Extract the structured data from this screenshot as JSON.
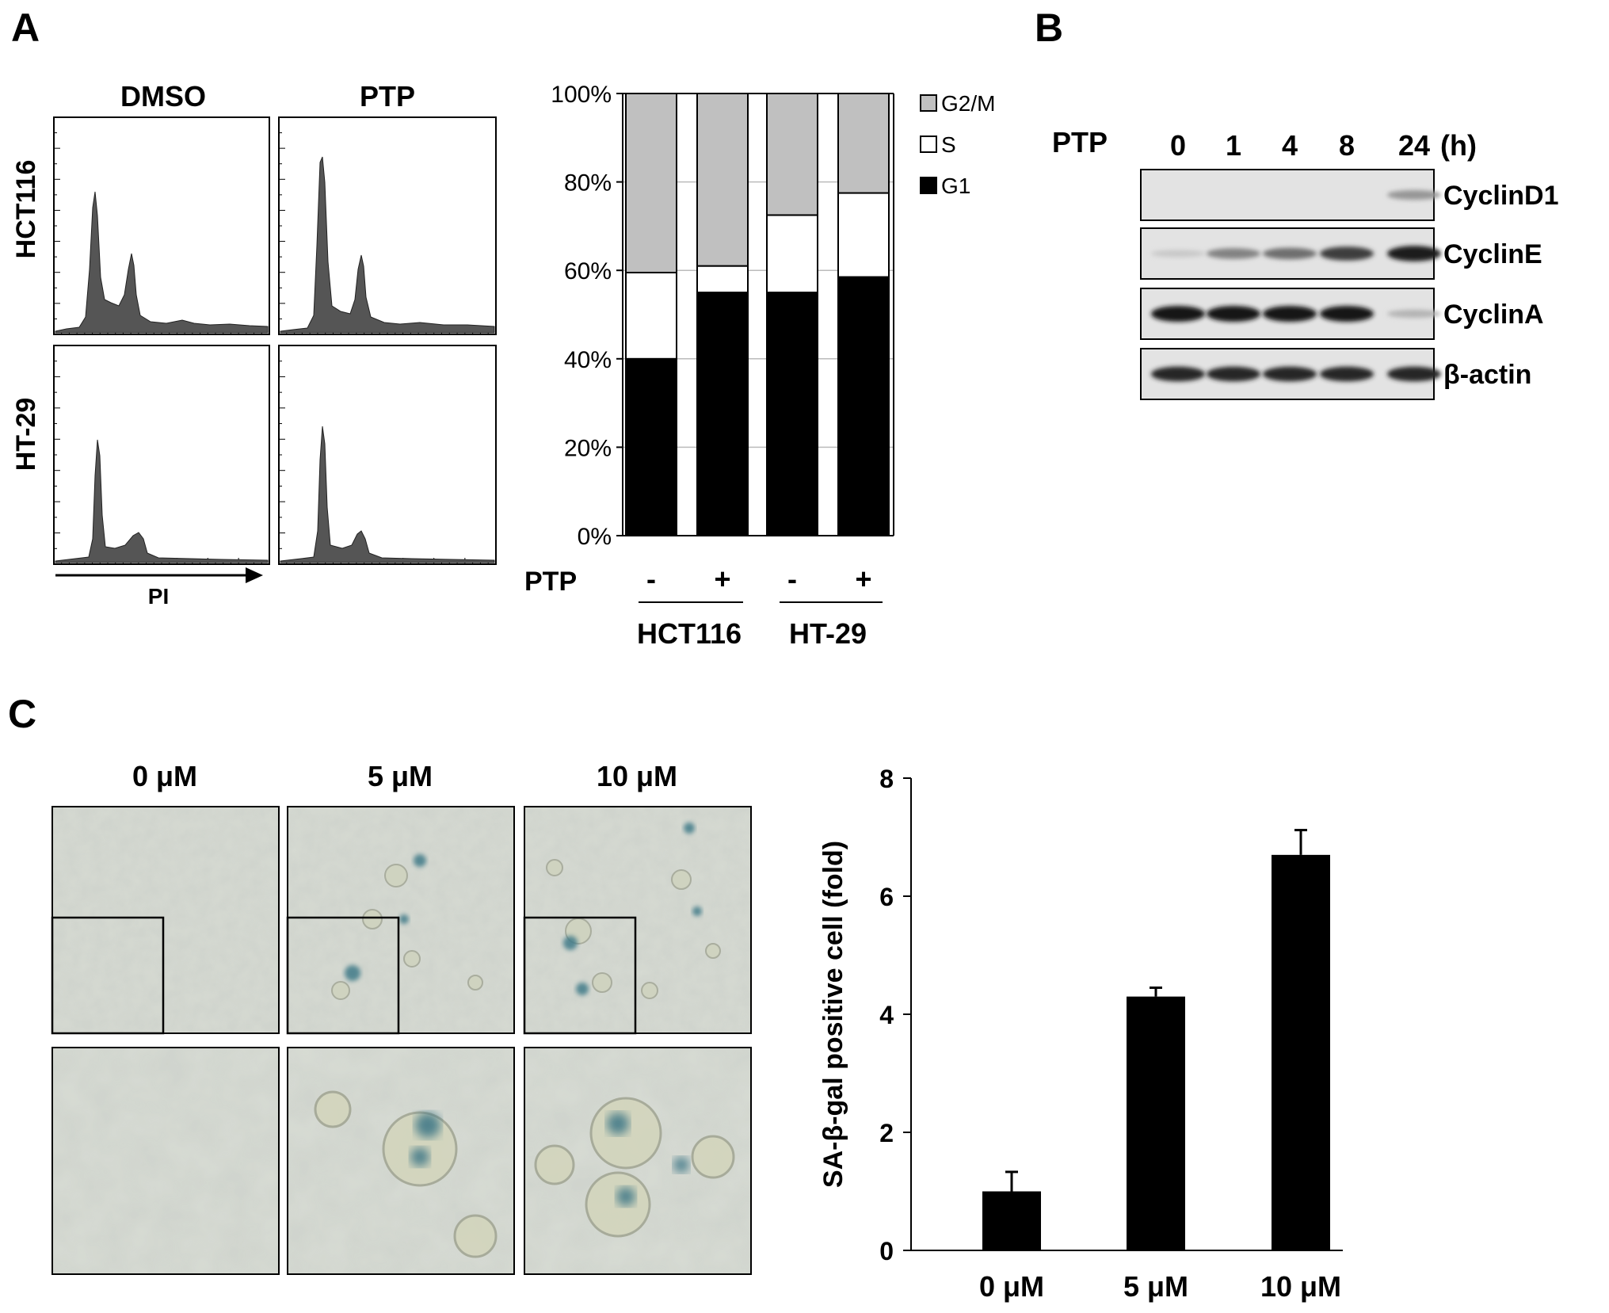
{
  "panels": {
    "a": {
      "letter": "A",
      "histograms": {
        "col_labels": [
          "DMSO",
          "PTP"
        ],
        "row_labels": [
          "HCT116",
          "HT-29"
        ],
        "x_label": "PI"
      },
      "treatment_label": "PTP",
      "bar_signs": [
        "-",
        "+",
        "-",
        "+"
      ],
      "group_labels": [
        "HCT116",
        "HT-29"
      ]
    },
    "b": {
      "letter": "B",
      "treatment_label": "PTP",
      "times": [
        "0",
        "1",
        "4",
        "8",
        "24"
      ],
      "time_unit": "(h)",
      "blots": [
        {
          "name": "CyclinD1",
          "intensity": [
            0,
            0,
            0,
            0,
            0.35
          ]
        },
        {
          "name": "CyclinE",
          "intensity": [
            0.1,
            0.45,
            0.55,
            0.8,
            0.95
          ]
        },
        {
          "name": "CyclinA",
          "intensity": [
            1,
            1,
            1,
            1,
            0.2
          ]
        },
        {
          "name": "β-actin",
          "intensity": [
            0.9,
            0.9,
            0.9,
            0.9,
            0.9
          ]
        }
      ]
    },
    "c": {
      "letter": "C",
      "image_labels": [
        "0 μM",
        "5 μM",
        "10 μM"
      ]
    }
  },
  "chart_data": [
    {
      "type": "bar",
      "stacked": true,
      "categories": [
        "-",
        "+",
        "-",
        "+"
      ],
      "groups": [
        "HCT116",
        "HT-29"
      ],
      "series": [
        {
          "name": "G1",
          "values": [
            40,
            55,
            55,
            58.5
          ],
          "color": "#000000"
        },
        {
          "name": "S",
          "values": [
            19.5,
            6,
            17.5,
            19
          ],
          "color": "#ffffff"
        },
        {
          "name": "G2/M",
          "values": [
            40.5,
            39,
            27.5,
            22.5
          ],
          "color": "#c0c0c0"
        }
      ],
      "yticks": [
        "0%",
        "20%",
        "40%",
        "60%",
        "80%",
        "100%"
      ],
      "ylim": [
        0,
        100
      ],
      "legend": [
        "G2/M",
        "S",
        "G1"
      ],
      "grid": true
    },
    {
      "type": "bar",
      "categories": [
        "0 μM",
        "5 μM",
        "10 μM"
      ],
      "values": [
        1.0,
        4.3,
        6.7
      ],
      "errors": [
        0.33,
        0.15,
        0.42
      ],
      "ylabel": "SA-β-gal positive cell (fold)",
      "ylim": [
        0,
        8
      ],
      "yticks": [
        "0",
        "2",
        "4",
        "6",
        "8"
      ],
      "color": "#000000"
    }
  ]
}
